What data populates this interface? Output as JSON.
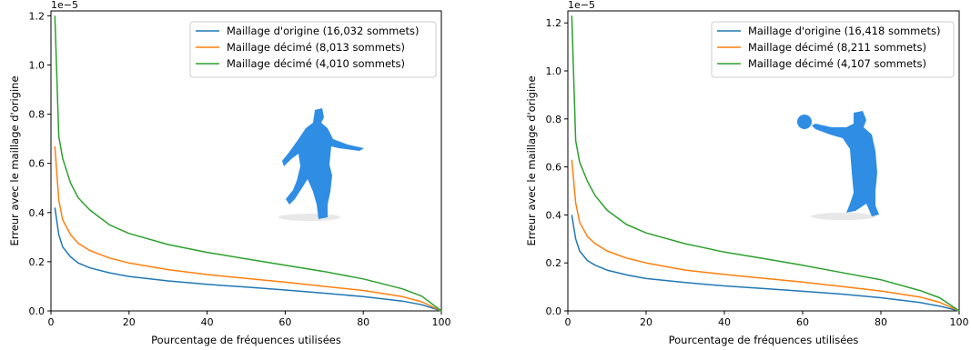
{
  "chart_data": [
    {
      "type": "line",
      "xlabel": "Pourcentage de fréquences utilisées",
      "ylabel": "Erreur avec le maillage d'origine",
      "y_offset_label": "1e−5",
      "xlim": [
        0,
        100
      ],
      "ylim": [
        0,
        1.22
      ],
      "xticks": [
        0,
        20,
        40,
        60,
        80,
        100
      ],
      "yticks": [
        0.0,
        0.2,
        0.4,
        0.6,
        0.8,
        1.0,
        1.2
      ],
      "xtick_labels": [
        "0",
        "20",
        "40",
        "60",
        "80",
        "100"
      ],
      "ytick_labels": [
        "0.0",
        "0.2",
        "0.4",
        "0.6",
        "0.8",
        "1.0",
        "1.2"
      ],
      "legend_position": "top-right",
      "grid": false,
      "x": [
        1,
        2,
        3,
        5,
        7,
        10,
        15,
        20,
        30,
        40,
        50,
        60,
        70,
        80,
        90,
        95,
        100
      ],
      "series": [
        {
          "name": "Maillage d'origine (16,032 sommets)",
          "color": "#1f77b4",
          "values": [
            0.42,
            0.31,
            0.26,
            0.22,
            0.195,
            0.175,
            0.155,
            0.14,
            0.122,
            0.108,
            0.097,
            0.085,
            0.072,
            0.058,
            0.04,
            0.025,
            0.0
          ]
        },
        {
          "name": "Maillage décimé (8,013 sommets)",
          "color": "#ff7f0e",
          "values": [
            0.67,
            0.45,
            0.37,
            0.31,
            0.275,
            0.245,
            0.215,
            0.195,
            0.168,
            0.148,
            0.132,
            0.117,
            0.1,
            0.083,
            0.058,
            0.037,
            0.0
          ]
        },
        {
          "name": "Maillage décimé (4,010 sommets)",
          "color": "#2ca02c",
          "values": [
            1.2,
            0.71,
            0.62,
            0.52,
            0.46,
            0.41,
            0.35,
            0.315,
            0.27,
            0.238,
            0.212,
            0.186,
            0.16,
            0.13,
            0.09,
            0.06,
            0.0
          ]
        }
      ]
    },
    {
      "type": "line",
      "xlabel": "Pourcentage de fréquences utilisées",
      "ylabel": "Erreur avec le maillage d'origine",
      "y_offset_label": "1e−5",
      "xlim": [
        0,
        100
      ],
      "ylim": [
        0,
        1.25
      ],
      "xticks": [
        0,
        20,
        40,
        60,
        80,
        100
      ],
      "yticks": [
        0.0,
        0.2,
        0.4,
        0.6,
        0.8,
        1.0,
        1.2
      ],
      "xtick_labels": [
        "0",
        "20",
        "40",
        "60",
        "80",
        "100"
      ],
      "ytick_labels": [
        "0.0",
        "0.2",
        "0.4",
        "0.6",
        "0.8",
        "1.0",
        "1.2"
      ],
      "legend_position": "top-right",
      "grid": false,
      "x": [
        1,
        2,
        3,
        5,
        7,
        10,
        15,
        20,
        30,
        40,
        50,
        60,
        70,
        80,
        90,
        95,
        100
      ],
      "series": [
        {
          "name": "Maillage d'origine (16,418 sommets)",
          "color": "#1f77b4",
          "values": [
            0.4,
            0.3,
            0.25,
            0.21,
            0.19,
            0.17,
            0.15,
            0.135,
            0.118,
            0.104,
            0.093,
            0.082,
            0.07,
            0.055,
            0.035,
            0.02,
            0.0
          ]
        },
        {
          "name": "Maillage décimé (8,211 sommets)",
          "color": "#ff7f0e",
          "values": [
            0.63,
            0.45,
            0.37,
            0.31,
            0.28,
            0.25,
            0.22,
            0.2,
            0.17,
            0.152,
            0.136,
            0.12,
            0.102,
            0.083,
            0.058,
            0.036,
            0.0
          ]
        },
        {
          "name": "Maillage décimé (4,107 sommets)",
          "color": "#2ca02c",
          "values": [
            1.23,
            0.71,
            0.62,
            0.54,
            0.48,
            0.42,
            0.36,
            0.325,
            0.28,
            0.245,
            0.218,
            0.19,
            0.16,
            0.13,
            0.085,
            0.055,
            0.0
          ]
        }
      ]
    }
  ]
}
